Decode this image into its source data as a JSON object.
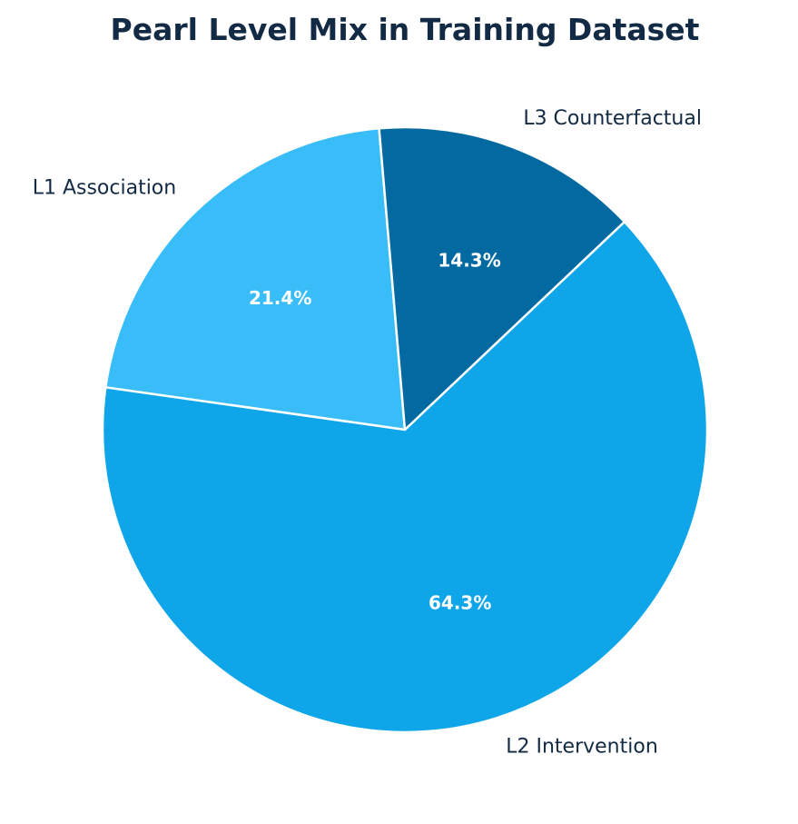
{
  "chart_data": {
    "type": "pie",
    "title": "Pearl Level Mix in Training Dataset",
    "categories": [
      "L1 Association",
      "L2 Intervention",
      "L3 Counterfactual"
    ],
    "values": [
      21.4,
      64.3,
      14.3
    ],
    "value_labels": [
      "21.4%",
      "64.3%",
      "14.3%"
    ],
    "colors": [
      "#38bdf8",
      "#0ea5e9",
      "#0369a1"
    ],
    "wedge_edge_color": "#ffffff",
    "legend": "none"
  }
}
